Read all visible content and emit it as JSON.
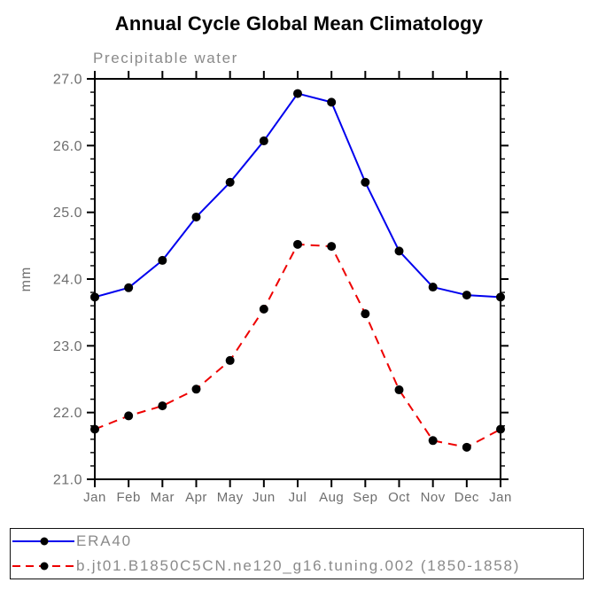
{
  "chart_data": {
    "type": "line",
    "title": "Annual Cycle Global Mean Climatology",
    "subtitle": "Precipitable water",
    "xlabel": "",
    "ylabel": "mm",
    "categories": [
      "Jan",
      "Feb",
      "Mar",
      "Apr",
      "May",
      "Jun",
      "Jul",
      "Aug",
      "Sep",
      "Oct",
      "Nov",
      "Dec",
      "Jan"
    ],
    "series": [
      {
        "name": "ERA40",
        "line_style": "solid",
        "color": "#0000ee",
        "marker": "filled-circle",
        "marker_color": "#000000",
        "values": [
          23.73,
          23.87,
          24.28,
          24.93,
          25.45,
          26.07,
          26.78,
          26.65,
          25.45,
          24.42,
          23.88,
          23.76,
          23.73
        ]
      },
      {
        "name": "b.jt01.B1850C5CN.ne120_g16.tuning.002 (1850-1858)",
        "line_style": "dashed",
        "color": "#ee0000",
        "marker": "filled-circle",
        "marker_color": "#000000",
        "values": [
          21.75,
          21.95,
          22.1,
          22.35,
          22.78,
          23.55,
          24.52,
          24.49,
          23.48,
          22.34,
          21.58,
          21.48,
          21.75
        ]
      }
    ],
    "ylim": [
      21.0,
      27.0
    ],
    "ytick_step": 1.0,
    "yminor_step": 0.2,
    "ytick_labels": [
      "21.0",
      "22.0",
      "23.0",
      "24.0",
      "25.0",
      "26.0",
      "27.0"
    ],
    "grid": false,
    "legend_position": "bottom"
  },
  "colors": {
    "axis": "#000000",
    "tick_label": "#6e6e6e",
    "subtitle_gray": "#8a8a8a",
    "series_blue": "#0000ee",
    "series_red": "#ee0000",
    "marker_black": "#000000"
  }
}
